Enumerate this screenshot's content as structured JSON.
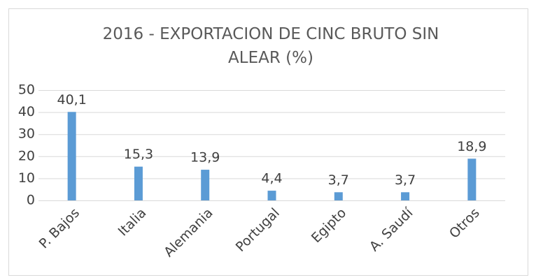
{
  "chart_data": {
    "type": "bar",
    "title": "2016 - EXPORTACION DE CINC BRUTO SIN ALEAR (%)",
    "categories": [
      "P. Bajos",
      "Italia",
      "Alemania",
      "Portugal",
      "Egipto",
      "A. Saudí",
      "Otros"
    ],
    "values": [
      40.1,
      15.3,
      13.9,
      4.4,
      3.7,
      3.7,
      18.9
    ],
    "value_labels": [
      "40,1",
      "15,3",
      "13,9",
      "4,4",
      "3,7",
      "3,7",
      "18,9"
    ],
    "color": "#5b9bd5",
    "ylim": [
      0,
      50
    ],
    "yticks": [
      0,
      10,
      20,
      30,
      40,
      50
    ],
    "grid": true
  }
}
